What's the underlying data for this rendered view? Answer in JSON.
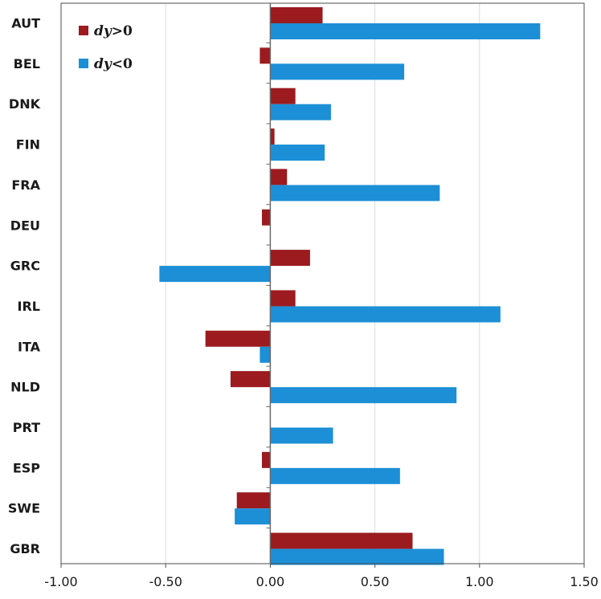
{
  "chart_data": {
    "type": "bar",
    "orientation": "horizontal",
    "categories": [
      "AUT",
      "BEL",
      "DNK",
      "FIN",
      "FRA",
      "DEU",
      "GRC",
      "IRL",
      "ITA",
      "NLD",
      "PRT",
      "ESP",
      "SWE",
      "GBR"
    ],
    "series": [
      {
        "name": "dy>0",
        "name_var": "dy",
        "name_rest": ">0",
        "color": "#9b1b1f",
        "values": [
          0.25,
          -0.05,
          0.12,
          0.02,
          0.08,
          -0.04,
          0.19,
          0.12,
          -0.31,
          -0.19,
          0.0,
          -0.04,
          -0.16,
          0.68
        ]
      },
      {
        "name": "dy<0",
        "name_var": "dy",
        "name_rest": "<0",
        "color": "#1c8fd6",
        "values": [
          1.29,
          0.64,
          0.29,
          0.26,
          0.81,
          0.0,
          -0.53,
          1.1,
          -0.05,
          0.89,
          0.3,
          0.62,
          -0.17,
          0.83
        ]
      }
    ],
    "xlim": [
      -1.0,
      1.5
    ],
    "xticks": [
      -1.0,
      -0.5,
      0.0,
      0.5,
      1.0,
      1.5
    ],
    "xtick_labels": [
      "-1.00",
      "-0.50",
      "0.00",
      "0.50",
      "1.00",
      "1.50"
    ],
    "title": "",
    "xlabel": "",
    "ylabel": "",
    "grid": "vertical",
    "legend": "top-left"
  }
}
